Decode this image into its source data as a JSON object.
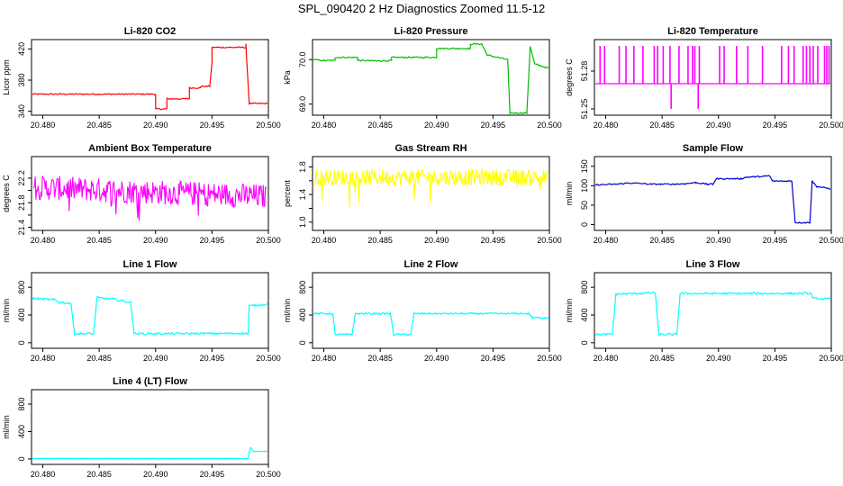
{
  "title": "SPL_090420  2 Hz Diagnostics Zoomed 11.5-12",
  "chart_data": [
    {
      "type": "line",
      "title": "Li-820 CO2",
      "ylabel": "Licor ppm",
      "color": "#ff0000",
      "xlim": [
        20.479,
        20.5
      ],
      "ylim": [
        335,
        432
      ],
      "xticks": [
        "20.480",
        "20.485",
        "20.490",
        "20.495",
        "20.500"
      ],
      "yticks": [
        "340",
        "380",
        "420"
      ],
      "series": [
        {
          "noise": 0.8,
          "points": [
            [
              20.479,
              362
            ],
            [
              20.49,
              362
            ],
            [
              20.49,
              343
            ],
            [
              20.491,
              343
            ],
            [
              20.491,
              356
            ],
            [
              20.492,
              356
            ],
            [
              20.493,
              356
            ],
            [
              20.493,
              370
            ],
            [
              20.494,
              370
            ],
            [
              20.494,
              372
            ],
            [
              20.4948,
              372
            ],
            [
              20.495,
              402
            ],
            [
              20.495,
              422
            ],
            [
              20.498,
              422
            ],
            [
              20.498,
              426
            ],
            [
              20.4983,
              350
            ],
            [
              20.5,
              350
            ]
          ]
        }
      ]
    },
    {
      "type": "line",
      "title": "Li-820 Pressure",
      "ylabel": "kPa",
      "color": "#00bb00",
      "xlim": [
        20.479,
        20.5
      ],
      "ylim": [
        68.75,
        70.45
      ],
      "xticks": [
        "20.480",
        "20.485",
        "20.490",
        "20.495",
        "20.500"
      ],
      "yticks": [
        "69.0",
        "70.0"
      ],
      "series": [
        {
          "noise": 0.015,
          "points": [
            [
              20.479,
              70.0
            ],
            [
              20.48,
              69.98
            ],
            [
              20.481,
              69.98
            ],
            [
              20.481,
              70.05
            ],
            [
              20.483,
              70.05
            ],
            [
              20.483,
              69.98
            ],
            [
              20.485,
              69.97
            ],
            [
              20.486,
              69.98
            ],
            [
              20.486,
              70.05
            ],
            [
              20.49,
              70.05
            ],
            [
              20.49,
              70.25
            ],
            [
              20.493,
              70.25
            ],
            [
              20.493,
              70.35
            ],
            [
              20.494,
              70.35
            ],
            [
              20.4945,
              70.1
            ],
            [
              20.4963,
              70.0
            ],
            [
              20.4965,
              68.8
            ],
            [
              20.498,
              68.8
            ],
            [
              20.4983,
              70.3
            ],
            [
              20.4987,
              69.9
            ],
            [
              20.5,
              69.8
            ]
          ]
        }
      ]
    },
    {
      "type": "line",
      "title": "Li-820 Temperature",
      "ylabel": "degrees C",
      "color": "#ff00ff",
      "xlim": [
        20.479,
        20.5
      ],
      "ylim": [
        51.245,
        51.305
      ],
      "xticks": [
        "20.480",
        "20.485",
        "20.490",
        "20.495",
        "20.500"
      ],
      "yticks": [
        "51.25",
        "51.28"
      ],
      "extra_yticks": [
        "51.28"
      ],
      "spikes": {
        "baseline": 51.27,
        "high": 51.3,
        "low": 51.25,
        "up_at": [
          20.4795,
          20.4799,
          20.4812,
          20.4818,
          20.4825,
          20.4833,
          20.4843,
          20.4846,
          20.4851,
          20.4857,
          20.4865,
          20.4873,
          20.4877,
          20.4879,
          20.4883,
          20.4901,
          20.4905,
          20.4916,
          20.4926,
          20.4939,
          20.4956,
          20.4962,
          20.4967,
          20.4975,
          20.4978,
          20.4981,
          20.4984,
          20.4988,
          20.4994,
          20.4996,
          20.4998
        ],
        "down_at": [
          20.4858,
          20.4882
        ]
      }
    },
    {
      "type": "line",
      "title": "Ambient Box Temperature",
      "ylabel": "degrees C",
      "color": "#ff00ff",
      "xlim": [
        20.479,
        20.5
      ],
      "ylim": [
        21.35,
        22.55
      ],
      "xticks": [
        "20.480",
        "20.485",
        "20.490",
        "20.495",
        "20.500"
      ],
      "yticks": [
        "21.4",
        "21.8",
        "22.2"
      ],
      "extra_yticks": [
        "21.6",
        "22.0"
      ],
      "band": {
        "center": [
          22.05,
          21.9
        ],
        "spread": 0.2,
        "occasional_low": 21.5
      }
    },
    {
      "type": "line",
      "title": "Gas Stream RH",
      "ylabel": "percent",
      "color": "#ffff00",
      "xlim": [
        20.479,
        20.5
      ],
      "ylim": [
        0.88,
        1.95
      ],
      "xticks": [
        "20.480",
        "20.485",
        "20.490",
        "20.495",
        "20.500"
      ],
      "yticks": [
        "1.0",
        "1.4",
        "1.8"
      ],
      "extra_yticks": [
        "1.2",
        "1.6"
      ],
      "band": {
        "center": [
          1.65,
          1.65
        ],
        "spread": 0.12,
        "occasional_low": 1.2
      }
    },
    {
      "type": "line",
      "title": "Sample Flow",
      "ylabel": "ml/min",
      "color": "#0000cc",
      "xlim": [
        20.479,
        20.5
      ],
      "ylim": [
        -15,
        175
      ],
      "xticks": [
        "20.480",
        "20.485",
        "20.490",
        "20.495",
        "20.500"
      ],
      "yticks": [
        "0",
        "50",
        "100",
        "150"
      ],
      "series": [
        {
          "noise": 1.5,
          "points": [
            [
              20.479,
              102
            ],
            [
              20.481,
              104
            ],
            [
              20.482,
              107
            ],
            [
              20.483,
              106
            ],
            [
              20.484,
              104
            ],
            [
              20.486,
              104
            ],
            [
              20.487,
              105
            ],
            [
              20.488,
              108
            ],
            [
              20.489,
              104
            ],
            [
              20.4895,
              104
            ],
            [
              20.4898,
              118
            ],
            [
              20.492,
              118
            ],
            [
              20.4925,
              122
            ],
            [
              20.494,
              124
            ],
            [
              20.4945,
              126
            ],
            [
              20.4948,
              112
            ],
            [
              20.4965,
              112
            ],
            [
              20.4968,
              5
            ],
            [
              20.4981,
              5
            ],
            [
              20.4983,
              112
            ],
            [
              20.4987,
              98
            ],
            [
              20.5,
              92
            ]
          ]
        }
      ]
    },
    {
      "type": "line",
      "title": "Line 1 Flow",
      "ylabel": "ml/min",
      "color": "#00ffff",
      "xlim": [
        20.479,
        20.5
      ],
      "ylim": [
        -80,
        1010
      ],
      "xticks": [
        "20.480",
        "20.485",
        "20.490",
        "20.495",
        "20.500"
      ],
      "yticks": [
        "0",
        "400",
        "800"
      ],
      "series": [
        {
          "noise": 15,
          "points": [
            [
              20.479,
              640
            ],
            [
              20.481,
              620
            ],
            [
              20.4815,
              580
            ],
            [
              20.4825,
              570
            ],
            [
              20.4828,
              130
            ],
            [
              20.4845,
              130
            ],
            [
              20.4848,
              650
            ],
            [
              20.4862,
              630
            ],
            [
              20.4872,
              600
            ],
            [
              20.4878,
              580
            ],
            [
              20.4881,
              130
            ],
            [
              20.4982,
              135
            ],
            [
              20.4983,
              530
            ],
            [
              20.5,
              560
            ]
          ]
        }
      ]
    },
    {
      "type": "line",
      "title": "Line 2 Flow",
      "ylabel": "ml/min",
      "color": "#00ffff",
      "xlim": [
        20.479,
        20.5
      ],
      "ylim": [
        -80,
        1010
      ],
      "xticks": [
        "20.480",
        "20.485",
        "20.490",
        "20.495",
        "20.500"
      ],
      "yticks": [
        "0",
        "400",
        "800"
      ],
      "series": [
        {
          "noise": 12,
          "points": [
            [
              20.479,
              420
            ],
            [
              20.4808,
              420
            ],
            [
              20.481,
              120
            ],
            [
              20.4825,
              120
            ],
            [
              20.4828,
              420
            ],
            [
              20.4859,
              420
            ],
            [
              20.4862,
              120
            ],
            [
              20.4877,
              120
            ],
            [
              20.488,
              420
            ],
            [
              20.4982,
              420
            ],
            [
              20.4985,
              360
            ],
            [
              20.5,
              360
            ]
          ]
        }
      ]
    },
    {
      "type": "line",
      "title": "Line 3 Flow",
      "ylabel": "ml/min",
      "color": "#00ffff",
      "xlim": [
        20.479,
        20.5
      ],
      "ylim": [
        -80,
        1010
      ],
      "xticks": [
        "20.480",
        "20.485",
        "20.490",
        "20.495",
        "20.500"
      ],
      "yticks": [
        "0",
        "400",
        "800"
      ],
      "series": [
        {
          "noise": 15,
          "points": [
            [
              20.479,
              120
            ],
            [
              20.4806,
              120
            ],
            [
              20.4809,
              700
            ],
            [
              20.4844,
              720
            ],
            [
              20.4847,
              120
            ],
            [
              20.4863,
              120
            ],
            [
              20.4866,
              710
            ],
            [
              20.4982,
              710
            ],
            [
              20.4984,
              640
            ],
            [
              20.5,
              630
            ]
          ]
        }
      ]
    },
    {
      "type": "line",
      "title": "Line 4 (LT) Flow",
      "ylabel": "ml/min",
      "color": "#00ffff",
      "xlim": [
        20.479,
        20.5
      ],
      "ylim": [
        -80,
        1010
      ],
      "xticks": [
        "20.480",
        "20.485",
        "20.490",
        "20.495",
        "20.500"
      ],
      "yticks": [
        "0",
        "400",
        "800"
      ],
      "series": [
        {
          "noise": 3,
          "points": [
            [
              20.479,
              5
            ],
            [
              20.4982,
              5
            ],
            [
              20.4984,
              170
            ],
            [
              20.4987,
              110
            ],
            [
              20.5,
              110
            ]
          ]
        }
      ]
    }
  ]
}
